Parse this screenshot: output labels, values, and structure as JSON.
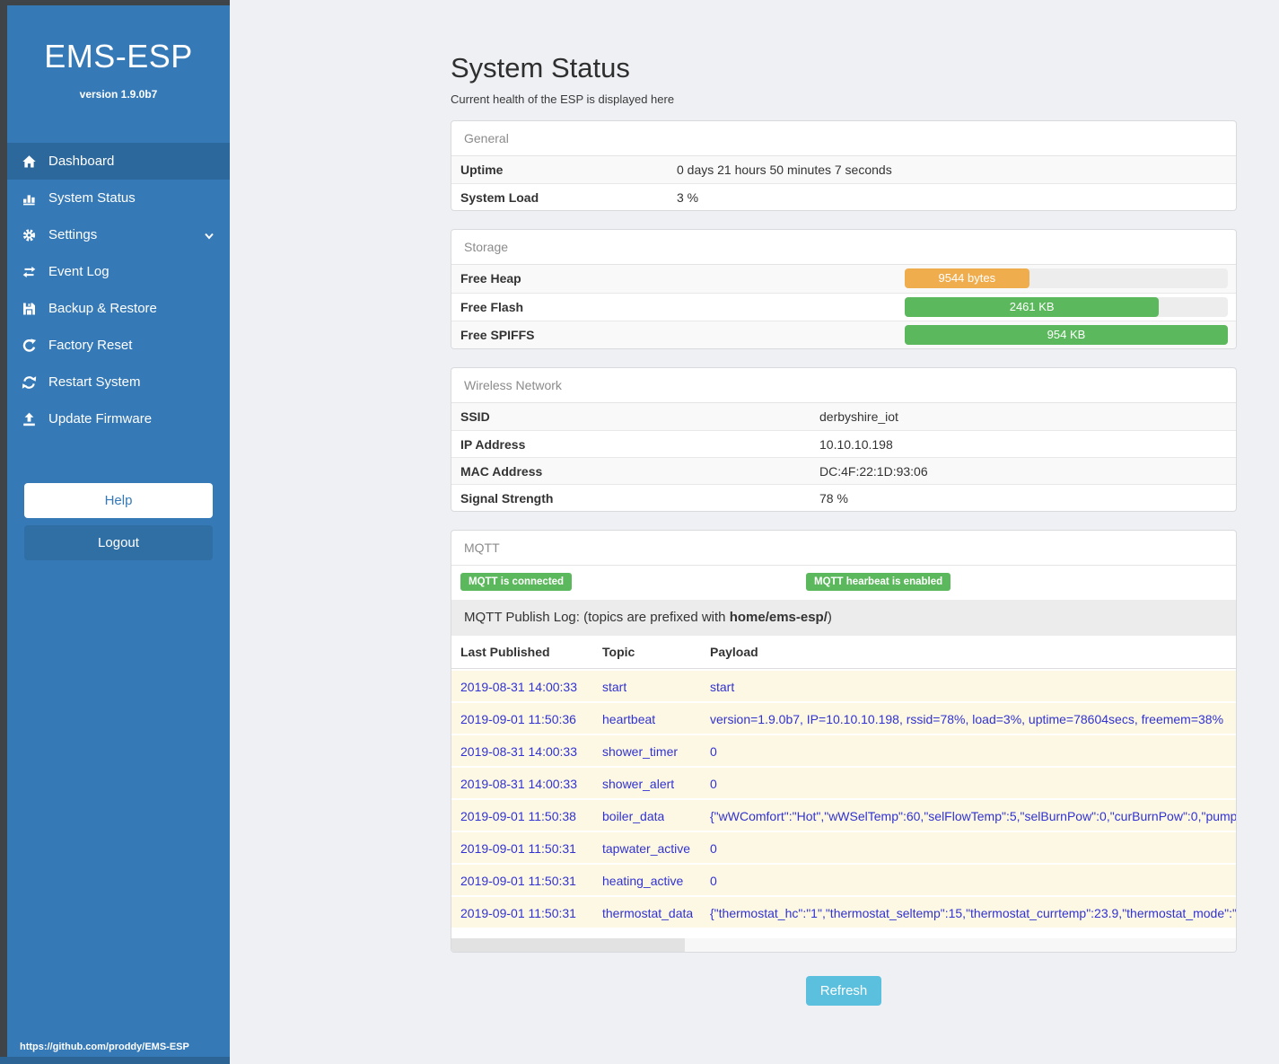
{
  "sidebar": {
    "brand": "EMS-ESP",
    "version": "version 1.9.0b7",
    "items": [
      {
        "label": "Dashboard",
        "icon": "home-icon",
        "active": true
      },
      {
        "label": "System Status",
        "icon": "chart-icon",
        "active": false
      },
      {
        "label": "Settings",
        "icon": "gear-icon",
        "active": false,
        "chevron": true
      },
      {
        "label": "Event Log",
        "icon": "exchange-icon",
        "active": false
      },
      {
        "label": "Backup & Restore",
        "icon": "save-icon",
        "active": false
      },
      {
        "label": "Factory Reset",
        "icon": "rotate-icon",
        "active": false
      },
      {
        "label": "Restart System",
        "icon": "refresh-icon",
        "active": false
      },
      {
        "label": "Update Firmware",
        "icon": "upload-icon",
        "active": false
      }
    ],
    "help_label": "Help",
    "logout_label": "Logout",
    "footer_link": "https://github.com/proddy/EMS-ESP"
  },
  "header": {
    "title": "System Status",
    "subtitle": "Current health of the ESP is displayed here"
  },
  "panels": {
    "general": {
      "title": "General",
      "rows": [
        {
          "label": "Uptime",
          "value": "0 days 21 hours 50 minutes 7 seconds"
        },
        {
          "label": "System Load",
          "value": "3 %"
        }
      ]
    },
    "storage": {
      "title": "Storage",
      "rows": [
        {
          "label": "Free Heap",
          "value": "9544 bytes",
          "percent": 38.5,
          "color": "#f0ad4e"
        },
        {
          "label": "Free Flash",
          "value": "2461 KB",
          "percent": 78.7,
          "color": "#5cb85c"
        },
        {
          "label": "Free SPIFFS",
          "value": "954 KB",
          "percent": 100,
          "color": "#5cb85c"
        }
      ]
    },
    "wireless": {
      "title": "Wireless Network",
      "rows": [
        {
          "label": "SSID",
          "value": "derbyshire_iot"
        },
        {
          "label": "IP Address",
          "value": "10.10.10.198"
        },
        {
          "label": "MAC Address",
          "value": "DC:4F:22:1D:93:06"
        },
        {
          "label": "Signal Strength",
          "value": "78 %"
        }
      ]
    },
    "mqtt": {
      "title": "MQTT",
      "badges": [
        "MQTT is connected",
        "MQTT hearbeat is enabled"
      ],
      "log_title_prefix": "MQTT Publish Log: (topics are prefixed with ",
      "log_title_bold": "home/ems-esp/",
      "log_title_suffix": ")",
      "table": {
        "headers": [
          "Last Published",
          "Topic",
          "Payload"
        ],
        "rows": [
          [
            "2019-08-31 14:00:33",
            "start",
            "start"
          ],
          [
            "2019-09-01 11:50:36",
            "heartbeat",
            "version=1.9.0b7, IP=10.10.10.198, rssid=78%, load=3%, uptime=78604secs, freemem=38%"
          ],
          [
            "2019-08-31 14:00:33",
            "shower_timer",
            "0"
          ],
          [
            "2019-08-31 14:00:33",
            "shower_alert",
            "0"
          ],
          [
            "2019-09-01 11:50:38",
            "boiler_data",
            "{\"wWComfort\":\"Hot\",\"wWSelTemp\":60,\"selFlowTemp\":5,\"selBurnPow\":0,\"curBurnPow\":0,\"pump"
          ],
          [
            "2019-09-01 11:50:31",
            "tapwater_active",
            "0"
          ],
          [
            "2019-09-01 11:50:31",
            "heating_active",
            "0"
          ],
          [
            "2019-09-01 11:50:31",
            "thermostat_data",
            "{\"thermostat_hc\":\"1\",\"thermostat_seltemp\":15,\"thermostat_currtemp\":23.9,\"thermostat_mode\":\""
          ]
        ]
      }
    }
  },
  "refresh_label": "Refresh",
  "colors": {
    "sidebar_blue": "#3579b7",
    "sidebar_active": "#2d689c",
    "success_green": "#5cb85c",
    "warning_orange": "#f0ad4e",
    "info_blue": "#5bc0de",
    "log_text_blue": "#3232d1",
    "log_row_cream": "#fcf8e3"
  }
}
